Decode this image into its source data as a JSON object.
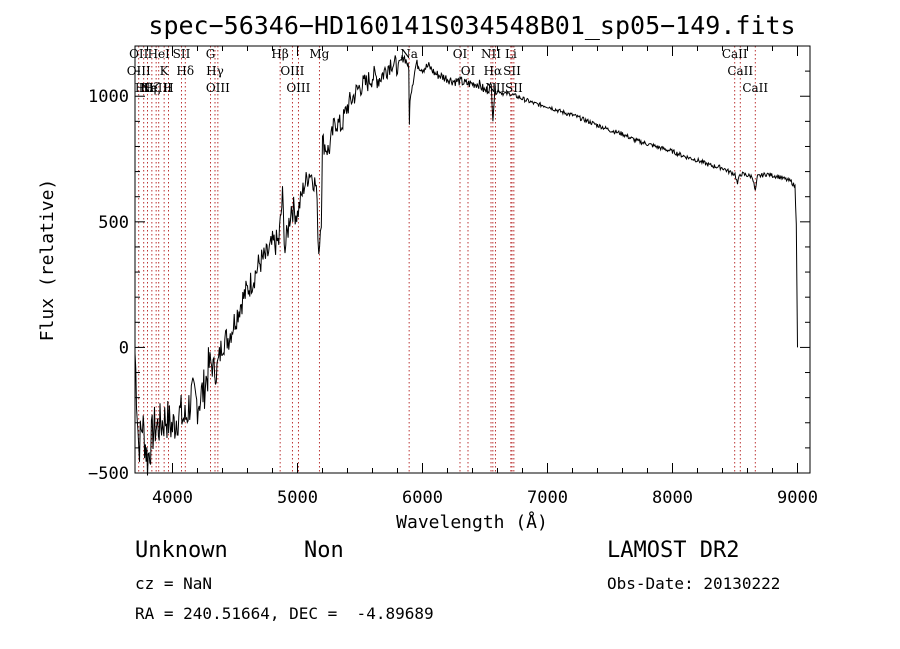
{
  "chart_data": {
    "type": "line",
    "title": "spec−56346−HD160141S034548B01_sp05−149.fits",
    "xlabel": "Wavelength (Å)",
    "ylabel": "Flux (relative)",
    "xlim": [
      3700,
      9100
    ],
    "ylim": [
      -500,
      1200
    ],
    "xticks": [
      4000,
      5000,
      6000,
      7000,
      8000,
      9000
    ],
    "yticks": [
      -500,
      0,
      500,
      1000
    ],
    "xtick_labels": [
      "4000",
      "5000",
      "6000",
      "7000",
      "8000",
      "9000"
    ],
    "ytick_labels": [
      "−500",
      "0",
      "500",
      "1000"
    ],
    "grid": false,
    "series": [
      {
        "name": "spectrum",
        "color": "#000000",
        "x": [
          3700,
          3730,
          3760,
          3800,
          3850,
          3900,
          3950,
          4000,
          4050,
          4100,
          4150,
          4200,
          4250,
          4300,
          4350,
          4400,
          4450,
          4500,
          4550,
          4600,
          4650,
          4700,
          4750,
          4800,
          4850,
          4880,
          4900,
          4950,
          5000,
          5050,
          5100,
          5150,
          5170,
          5190,
          5200,
          5250,
          5300,
          5350,
          5400,
          5450,
          5500,
          5550,
          5600,
          5650,
          5700,
          5750,
          5800,
          5850,
          5880,
          5890,
          5895,
          5900,
          5950,
          6000,
          6050,
          6100,
          6150,
          6200,
          6250,
          6300,
          6350,
          6400,
          6450,
          6500,
          6550,
          6563,
          6580,
          6650,
          6700,
          6800,
          6900,
          7000,
          7100,
          7200,
          7300,
          7400,
          7500,
          7600,
          7700,
          7800,
          7900,
          8000,
          8100,
          8200,
          8300,
          8400,
          8450,
          8500,
          8520,
          8540,
          8560,
          8600,
          8640,
          8662,
          8680,
          8750,
          8800,
          8850,
          8900,
          8950,
          8980,
          8990,
          9000
        ],
        "values": [
          -20,
          -400,
          -300,
          -450,
          -320,
          -310,
          -280,
          -320,
          -260,
          -290,
          -200,
          -220,
          -170,
          -60,
          -100,
          20,
          40,
          110,
          180,
          230,
          280,
          340,
          360,
          410,
          420,
          600,
          390,
          560,
          530,
          640,
          700,
          640,
          380,
          520,
          820,
          780,
          900,
          880,
          960,
          1000,
          1040,
          1050,
          1080,
          1070,
          1100,
          1140,
          1110,
          1160,
          1130,
          1100,
          880,
          1000,
          1130,
          1110,
          1120,
          1090,
          1080,
          1070,
          1060,
          1060,
          1050,
          1050,
          1050,
          1020,
          1040,
          920,
          1030,
          1010,
          1010,
          990,
          970,
          960,
          940,
          925,
          905,
          885,
          865,
          850,
          825,
          810,
          795,
          780,
          760,
          745,
          725,
          715,
          700,
          690,
          650,
          690,
          690,
          685,
          680,
          620,
          680,
          690,
          685,
          680,
          670,
          660,
          640,
          500,
          0
        ]
      }
    ],
    "line_markers": [
      {
        "x": 3730,
        "labels": [
          "OII",
          "OIII"
        ]
      },
      {
        "x": 3770,
        "labels": [
          "Hθ"
        ]
      },
      {
        "x": 3800,
        "labels": [
          "Hη"
        ]
      },
      {
        "x": 3835,
        "labels": [
          "Hζ"
        ]
      },
      {
        "x": 3869,
        "labels": [
          "NeIII"
        ]
      },
      {
        "x": 3890,
        "labels": [
          "HeI"
        ]
      },
      {
        "x": 3933,
        "labels": [
          "K"
        ]
      },
      {
        "x": 3968,
        "labels": [
          "H"
        ]
      },
      {
        "x": 4072,
        "labels": [
          "SII"
        ]
      },
      {
        "x": 4102,
        "labels": [
          "Hδ"
        ]
      },
      {
        "x": 4304,
        "labels": [
          "G"
        ]
      },
      {
        "x": 4340,
        "labels": [
          "Hγ"
        ]
      },
      {
        "x": 4363,
        "labels": [
          "OIII"
        ]
      },
      {
        "x": 4861,
        "labels": [
          "Hβ"
        ]
      },
      {
        "x": 4959,
        "labels": [
          "OIII"
        ]
      },
      {
        "x": 5007,
        "labels": [
          "OIII"
        ]
      },
      {
        "x": 5175,
        "labels": [
          "Mg"
        ]
      },
      {
        "x": 5893,
        "labels": [
          "Na"
        ]
      },
      {
        "x": 6300,
        "labels": [
          "OI"
        ]
      },
      {
        "x": 6364,
        "labels": [
          "OI"
        ]
      },
      {
        "x": 6548,
        "labels": [
          "NII"
        ]
      },
      {
        "x": 6563,
        "labels": [
          "Hα"
        ]
      },
      {
        "x": 6583,
        "labels": [
          "NII"
        ]
      },
      {
        "x": 6707,
        "labels": [
          "Li"
        ]
      },
      {
        "x": 6716,
        "labels": [
          "SII"
        ]
      },
      {
        "x": 6731,
        "labels": [
          "SII"
        ]
      },
      {
        "x": 8498,
        "labels": [
          "CaII"
        ]
      },
      {
        "x": 8542,
        "labels": [
          "CaII"
        ]
      },
      {
        "x": 8662,
        "labels": [
          "CaII"
        ]
      }
    ]
  },
  "info": {
    "object_class": "Unknown",
    "subclass": "Non",
    "survey": "LAMOST DR2",
    "redshift": "cz = NaN",
    "obs_date": "Obs-Date: 20130222",
    "coords": "RA = 240.51664, DEC =  -4.89689"
  },
  "colors": {
    "marker": "#aa0000",
    "spectrum": "#000000"
  }
}
